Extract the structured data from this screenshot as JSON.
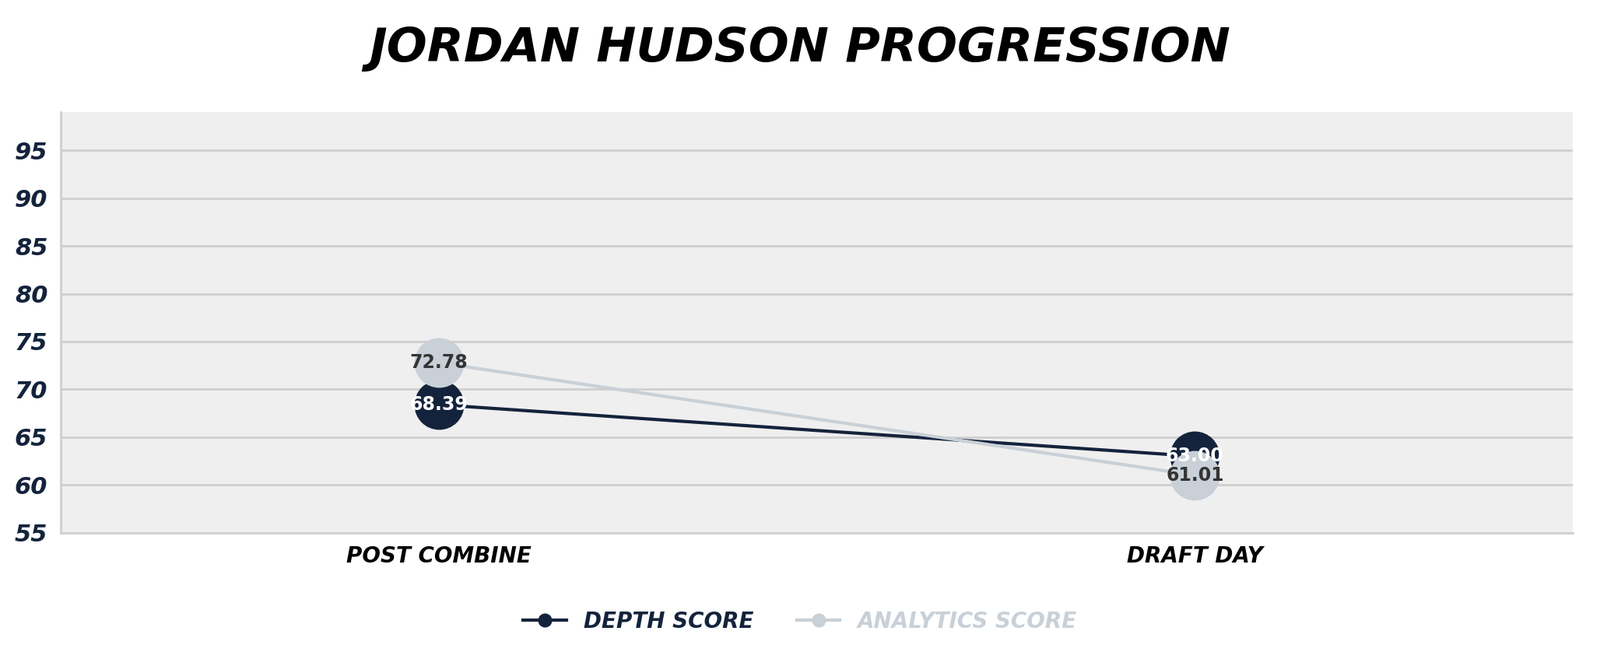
{
  "chart_data": {
    "type": "line",
    "title": "JORDAN HUDSON PROGRESSION",
    "categories": [
      "POST COMBINE",
      "DRAFT DAY"
    ],
    "series": [
      {
        "name": "DEPTH SCORE",
        "color": "#14233c",
        "marker": "o",
        "values": [
          68.39,
          63.0
        ],
        "value_labels": [
          "68.39",
          "63.00"
        ]
      },
      {
        "name": "ANALYTICS SCORE",
        "color": "#c9d0d7",
        "marker": "o",
        "values": [
          72.78,
          61.01
        ],
        "value_labels": [
          "72.78",
          "61.01"
        ]
      }
    ],
    "ylim": [
      55,
      99
    ],
    "yticks": [
      55,
      60,
      65,
      70,
      75,
      80,
      85,
      90,
      95
    ],
    "grid": true,
    "data_labels": true,
    "legend": "lower center"
  }
}
